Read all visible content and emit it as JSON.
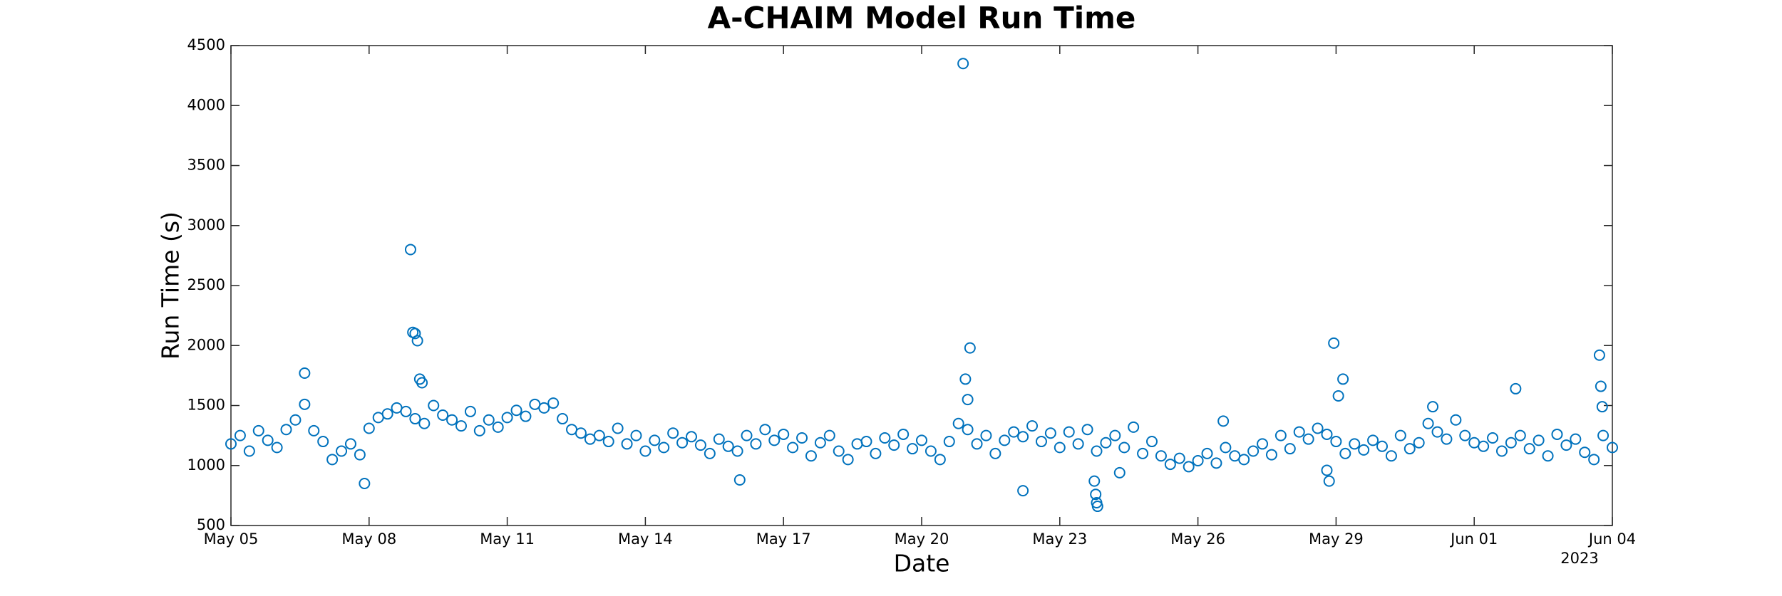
{
  "chart_data": {
    "type": "scatter",
    "title": "A-CHAIM Model Run Time",
    "x_label": "Date",
    "y_label": "Run Time (s)",
    "x_secondary_label": "2023",
    "xlim": [
      0,
      30
    ],
    "xticks": [
      {
        "value": 0,
        "label": "May 05"
      },
      {
        "value": 3,
        "label": "May 08"
      },
      {
        "value": 6,
        "label": "May 11"
      },
      {
        "value": 9,
        "label": "May 14"
      },
      {
        "value": 12,
        "label": "May 17"
      },
      {
        "value": 15,
        "label": "May 20"
      },
      {
        "value": 18,
        "label": "May 23"
      },
      {
        "value": 21,
        "label": "May 26"
      },
      {
        "value": 24,
        "label": "May 29"
      },
      {
        "value": 27,
        "label": "Jun 01"
      },
      {
        "value": 30,
        "label": "Jun 04"
      }
    ],
    "ylim": [
      500,
      4500
    ],
    "yticks": [
      500,
      1000,
      1500,
      2000,
      2500,
      3000,
      3500,
      4000,
      4500
    ],
    "grid": false,
    "series": [
      {
        "color": "#0072BD",
        "x": [
          0,
          0.2,
          0.4,
          0.6,
          0.8,
          1.0,
          1.2,
          1.4,
          1.6,
          1.8,
          2.0,
          2.2,
          2.4,
          2.6,
          2.8,
          3.0,
          3.2,
          3.4,
          3.6,
          3.8,
          4.0,
          4.2,
          4.4,
          4.6,
          4.8,
          5.0,
          5.2,
          5.4,
          5.6,
          5.8,
          6.0,
          6.2,
          6.4,
          6.6,
          6.8,
          7.0,
          7.2,
          7.4,
          7.6,
          7.8,
          8.0,
          8.2,
          8.4,
          8.6,
          8.8,
          9.0,
          9.2,
          9.4,
          9.6,
          9.8,
          10.0,
          10.2,
          10.4,
          10.6,
          10.8,
          11.0,
          11.2,
          11.4,
          11.6,
          11.8,
          12.0,
          12.2,
          12.4,
          12.6,
          12.8,
          13.0,
          13.2,
          13.4,
          13.6,
          13.8,
          14.0,
          14.2,
          14.4,
          14.6,
          14.8,
          15.0,
          15.2,
          15.4,
          15.6,
          15.8,
          16.0,
          16.2,
          16.4,
          16.6,
          16.8,
          17.0,
          17.2,
          17.4,
          17.6,
          17.8,
          18.0,
          18.2,
          18.4,
          18.6,
          18.8,
          19.0,
          19.2,
          19.4,
          19.6,
          19.8,
          20.0,
          20.2,
          20.4,
          20.6,
          20.8,
          21.0,
          21.2,
          21.4,
          21.6,
          21.8,
          22.0,
          22.2,
          22.4,
          22.6,
          22.8,
          23.0,
          23.2,
          23.4,
          23.6,
          23.8,
          24.0,
          24.2,
          24.4,
          24.6,
          24.8,
          25.0,
          25.2,
          25.4,
          25.6,
          25.8,
          26.0,
          26.2,
          26.4,
          26.6,
          26.8,
          27.0,
          27.2,
          27.4,
          27.6,
          27.8,
          28.0,
          28.2,
          28.4,
          28.6,
          28.8,
          29.0,
          29.2,
          29.4,
          29.6,
          29.8,
          30.0,
          1.6,
          2.9,
          3.9,
          3.95,
          4.0,
          4.05,
          4.1,
          4.15,
          11.05,
          15.9,
          15.95,
          16.0,
          16.05,
          17.2,
          18.75,
          18.78,
          18.8,
          18.82,
          19.3,
          21.55,
          23.8,
          23.85,
          23.95,
          24.05,
          24.15,
          26.1,
          27.9,
          29.72,
          29.75,
          29.78
        ],
        "values": [
          1180,
          1250,
          1120,
          1290,
          1210,
          1150,
          1300,
          1380,
          1510,
          1290,
          1200,
          1050,
          1120,
          1180,
          1090,
          1310,
          1400,
          1430,
          1480,
          1450,
          1390,
          1350,
          1500,
          1420,
          1380,
          1330,
          1450,
          1290,
          1380,
          1320,
          1400,
          1460,
          1410,
          1510,
          1480,
          1520,
          1390,
          1300,
          1270,
          1220,
          1250,
          1200,
          1310,
          1180,
          1250,
          1120,
          1210,
          1150,
          1270,
          1190,
          1240,
          1170,
          1100,
          1220,
          1160,
          1120,
          1250,
          1180,
          1300,
          1210,
          1260,
          1150,
          1230,
          1080,
          1190,
          1250,
          1120,
          1050,
          1180,
          1200,
          1100,
          1230,
          1170,
          1260,
          1140,
          1210,
          1120,
          1050,
          1200,
          1350,
          1300,
          1180,
          1250,
          1100,
          1210,
          1280,
          1240,
          1330,
          1200,
          1270,
          1150,
          1280,
          1180,
          1300,
          1120,
          1190,
          1250,
          1150,
          1320,
          1100,
          1200,
          1080,
          1010,
          1060,
          990,
          1040,
          1100,
          1020,
          1150,
          1080,
          1050,
          1120,
          1180,
          1090,
          1250,
          1140,
          1280,
          1220,
          1310,
          1260,
          1200,
          1100,
          1180,
          1130,
          1210,
          1160,
          1080,
          1250,
          1140,
          1190,
          1350,
          1280,
          1220,
          1380,
          1250,
          1190,
          1160,
          1230,
          1120,
          1190,
          1250,
          1140,
          1210,
          1080,
          1260,
          1170,
          1220,
          1110,
          1050,
          1250,
          1150,
          1770,
          850,
          2800,
          2110,
          2100,
          2040,
          1720,
          1690,
          880,
          4350,
          1720,
          1550,
          1980,
          790,
          870,
          760,
          690,
          660,
          940,
          1370,
          960,
          870,
          2020,
          1580,
          1720,
          1490,
          1640,
          1920,
          1660,
          1490
        ]
      }
    ]
  }
}
